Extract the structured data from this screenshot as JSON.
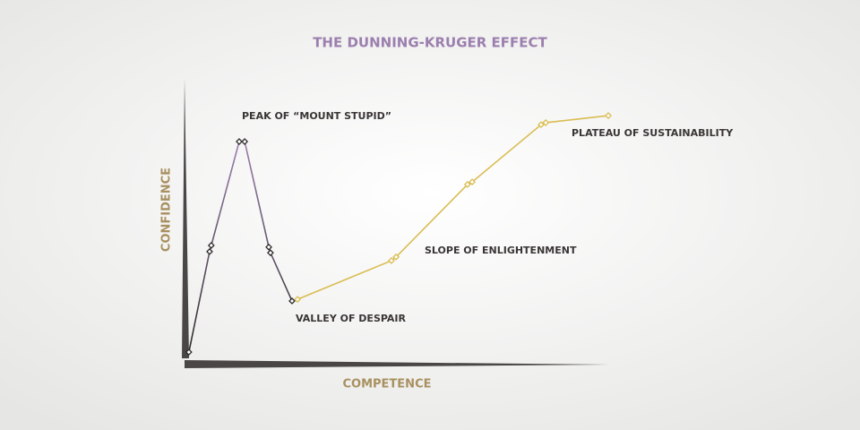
{
  "chart_data": {
    "type": "line",
    "title": "THE DUNNING-KRUGER EFFECT",
    "x_label": "COMPETENCE",
    "y_label": "CONFIDENCE",
    "xlim": [
      0,
      100
    ],
    "ylim": [
      0,
      100
    ],
    "series": [
      {
        "color": "#5a4a58",
        "x": [
          0.6,
          5.5,
          5.9,
          12.5,
          13.8,
          19.5,
          19.9,
          25.0
        ],
        "values": [
          3.8,
          39.4,
          41.6,
          78.4,
          78.4,
          41.0,
          39.0,
          21.9
        ]
      },
      {
        "color": "#d9bd52",
        "x": [
          26.3,
          48.5,
          49.6,
          66.5,
          67.6,
          83.9,
          85.0,
          99.8
        ],
        "values": [
          22.5,
          36.2,
          37.5,
          63.2,
          64.1,
          84.4,
          85.1,
          87.6
        ]
      }
    ],
    "annotations": [
      "PEAK OF “MOUNT STUPID”",
      "VALLEY OF DESPAIR",
      "SLOPE OF ENLIGHTENMENT",
      "PLATEAU OF SUSTAINABILITY"
    ]
  }
}
